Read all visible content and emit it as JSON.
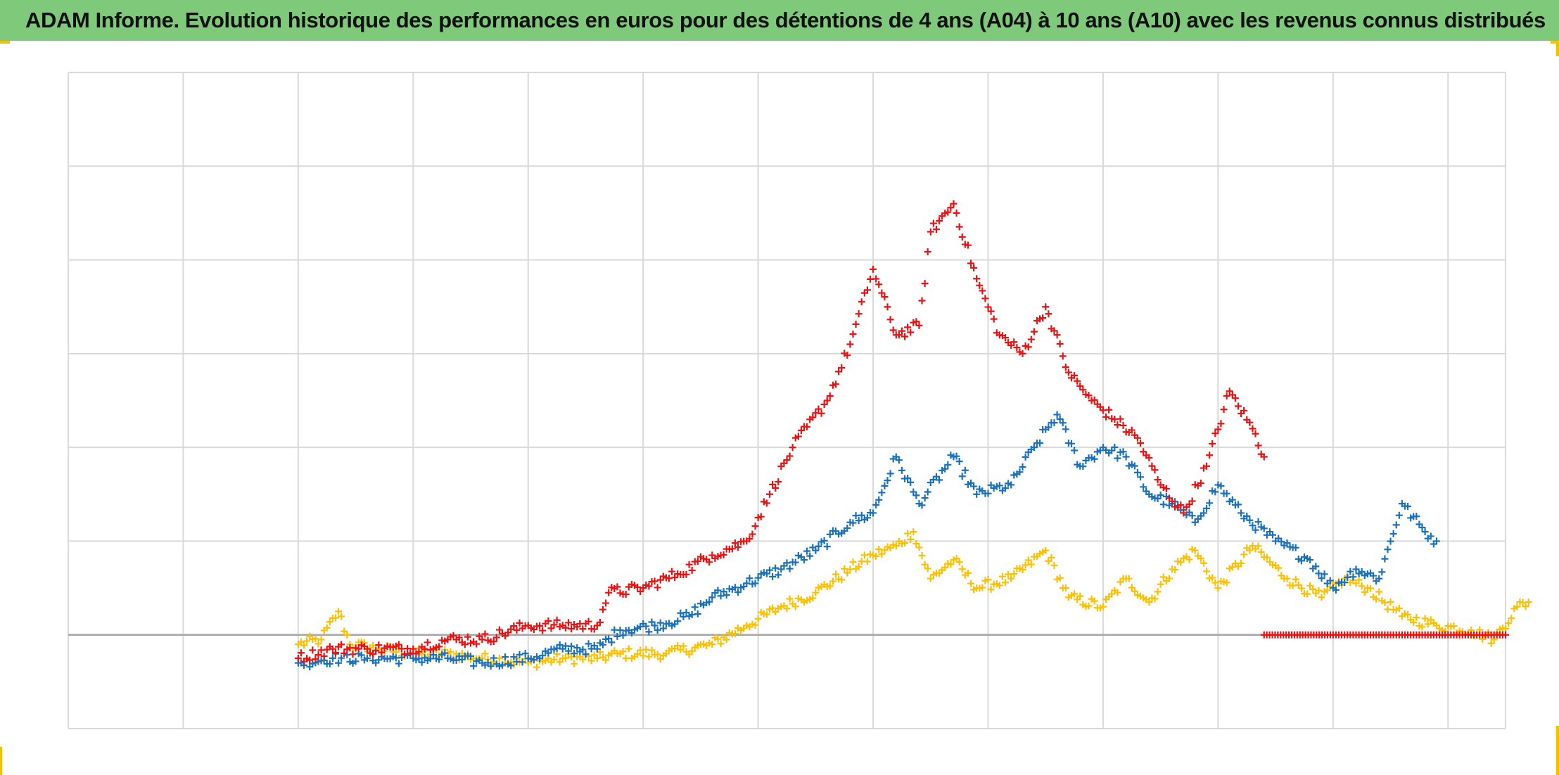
{
  "title": "ADAM Informe. Evolution historique des performances en euros pour des détentions de 4 ans (A04) à 10 ans (A10) avec les revenus connus distribués",
  "colors": {
    "title_bg": "#7fc97a",
    "grid": "#d9d9d9",
    "axis": "#a6a6a6",
    "red_series": "#ee1111",
    "blue_series": "#1a72be",
    "yellow_series": "#ffc000",
    "corner_marks": "#f2c200"
  },
  "chart_data": {
    "type": "scatter",
    "marker": "plus",
    "grid": true,
    "xlim": [
      0,
      12.5
    ],
    "ylim": [
      -1,
      6
    ],
    "xlabel": "",
    "ylabel": "",
    "tick_labels_visible": false,
    "series": [
      {
        "color": "#ffc000",
        "points": [
          [
            2.0,
            -0.1
          ],
          [
            2.2,
            -0.05
          ],
          [
            2.35,
            0.25
          ],
          [
            2.45,
            -0.1
          ],
          [
            2.7,
            -0.15
          ],
          [
            3.0,
            -0.2
          ],
          [
            3.3,
            -0.2
          ],
          [
            3.6,
            -0.25
          ],
          [
            4.0,
            -0.3
          ],
          [
            4.3,
            -0.25
          ],
          [
            4.6,
            -0.25
          ],
          [
            4.8,
            -0.2
          ],
          [
            5.2,
            -0.2
          ],
          [
            5.6,
            -0.1
          ],
          [
            5.9,
            0.1
          ],
          [
            6.2,
            0.3
          ],
          [
            6.5,
            0.45
          ],
          [
            6.8,
            0.7
          ],
          [
            7.0,
            0.85
          ],
          [
            7.2,
            0.95
          ],
          [
            7.35,
            1.1
          ],
          [
            7.5,
            0.6
          ],
          [
            7.7,
            0.8
          ],
          [
            7.9,
            0.5
          ],
          [
            8.2,
            0.6
          ],
          [
            8.5,
            0.9
          ],
          [
            8.7,
            0.4
          ],
          [
            9.0,
            0.3
          ],
          [
            9.2,
            0.6
          ],
          [
            9.4,
            0.35
          ],
          [
            9.6,
            0.7
          ],
          [
            9.8,
            0.9
          ],
          [
            10.0,
            0.5
          ],
          [
            10.3,
            0.95
          ],
          [
            10.6,
            0.6
          ],
          [
            10.9,
            0.4
          ],
          [
            11.1,
            0.6
          ],
          [
            11.3,
            0.5
          ],
          [
            11.6,
            0.2
          ],
          [
            11.9,
            0.1
          ],
          [
            12.2,
            0.05
          ],
          [
            12.4,
            -0.05
          ],
          [
            12.6,
            0.3
          ],
          [
            12.7,
            0.35
          ]
        ]
      },
      {
        "color": "#1a72be",
        "points": [
          [
            2.0,
            -0.3
          ],
          [
            2.3,
            -0.25
          ],
          [
            2.6,
            -0.25
          ],
          [
            3.0,
            -0.25
          ],
          [
            3.3,
            -0.25
          ],
          [
            3.6,
            -0.3
          ],
          [
            4.0,
            -0.25
          ],
          [
            4.3,
            -0.15
          ],
          [
            4.6,
            -0.15
          ],
          [
            4.8,
            0.05
          ],
          [
            5.1,
            0.1
          ],
          [
            5.4,
            0.2
          ],
          [
            5.6,
            0.4
          ],
          [
            5.9,
            0.55
          ],
          [
            6.2,
            0.7
          ],
          [
            6.5,
            0.9
          ],
          [
            6.8,
            1.2
          ],
          [
            7.0,
            1.3
          ],
          [
            7.2,
            1.9
          ],
          [
            7.4,
            1.4
          ],
          [
            7.7,
            1.9
          ],
          [
            7.9,
            1.5
          ],
          [
            8.2,
            1.6
          ],
          [
            8.4,
            2.0
          ],
          [
            8.6,
            2.35
          ],
          [
            8.8,
            1.8
          ],
          [
            9.0,
            2.0
          ],
          [
            9.2,
            1.9
          ],
          [
            9.4,
            1.5
          ],
          [
            9.6,
            1.4
          ],
          [
            9.8,
            1.2
          ],
          [
            10.0,
            1.6
          ],
          [
            10.2,
            1.3
          ],
          [
            10.5,
            1.0
          ],
          [
            10.8,
            0.8
          ],
          [
            11.0,
            0.5
          ],
          [
            11.2,
            0.7
          ],
          [
            11.4,
            0.6
          ],
          [
            11.6,
            1.4
          ],
          [
            11.8,
            1.1
          ],
          [
            11.9,
            1.0
          ]
        ]
      },
      {
        "color": "#ee1111",
        "points": [
          [
            2.0,
            -0.25
          ],
          [
            2.3,
            -0.15
          ],
          [
            2.6,
            -0.15
          ],
          [
            3.0,
            -0.15
          ],
          [
            3.3,
            -0.05
          ],
          [
            3.6,
            -0.05
          ],
          [
            4.0,
            0.1
          ],
          [
            4.3,
            0.1
          ],
          [
            4.6,
            0.1
          ],
          [
            4.7,
            0.45
          ],
          [
            5.0,
            0.5
          ],
          [
            5.3,
            0.65
          ],
          [
            5.6,
            0.85
          ],
          [
            5.9,
            1.0
          ],
          [
            6.1,
            1.5
          ],
          [
            6.3,
            2.0
          ],
          [
            6.6,
            2.5
          ],
          [
            6.8,
            3.1
          ],
          [
            7.0,
            3.9
          ],
          [
            7.2,
            3.2
          ],
          [
            7.4,
            3.3
          ],
          [
            7.5,
            4.3
          ],
          [
            7.7,
            4.6
          ],
          [
            7.9,
            3.8
          ],
          [
            8.1,
            3.2
          ],
          [
            8.3,
            3.0
          ],
          [
            8.5,
            3.5
          ],
          [
            8.7,
            2.8
          ],
          [
            8.9,
            2.5
          ],
          [
            9.1,
            2.3
          ],
          [
            9.3,
            2.1
          ],
          [
            9.5,
            1.6
          ],
          [
            9.7,
            1.3
          ],
          [
            9.9,
            1.8
          ],
          [
            10.1,
            2.6
          ],
          [
            10.3,
            2.2
          ],
          [
            10.4,
            1.9
          ]
        ]
      },
      {
        "color": "#ee1111",
        "points": [
          [
            10.4,
            0.0
          ],
          [
            11.0,
            0.0
          ],
          [
            11.5,
            0.0
          ],
          [
            12.0,
            0.0
          ],
          [
            12.5,
            0.0
          ]
        ]
      }
    ]
  }
}
